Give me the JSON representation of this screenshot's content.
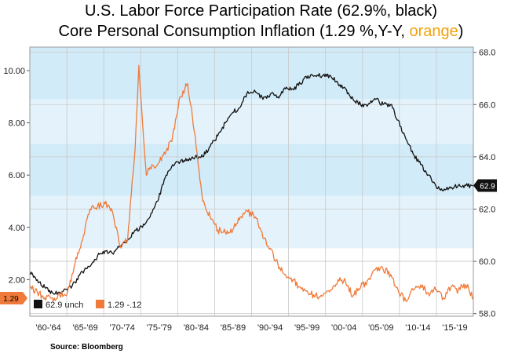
{
  "header": {
    "title_line1": "U.S. Labor Force Participation Rate (62.9%, black)",
    "title_line2_prefix": "Core Personal Consumption Inflation (1.29 %,Y-Y, ",
    "title_line2_highlight": "orange",
    "title_line2_suffix": ")"
  },
  "source": "Source:  Bloomberg",
  "colors": {
    "orange": "#f07a3a",
    "black": "#111111",
    "band_light": "#e4f3fb",
    "band_mid": "#d2ebf8",
    "highlight_text": "#f2a20a"
  },
  "chart_data": {
    "type": "line",
    "x_ticks": [
      "'60-'64",
      "'65-'69",
      "'70-'74",
      "'75-'79",
      "'80-'84",
      "'85-'89",
      "'90-'94",
      "'95-'99",
      "'00-'04",
      "'05-'09",
      "'10-'14",
      "'15-'19"
    ],
    "x_range": [
      1960,
      2019
    ],
    "y_left": {
      "ticks": [
        "2.00",
        "4.00",
        "6.00",
        "8.00",
        "10.00"
      ],
      "range": [
        0.6,
        10.9
      ]
    },
    "y_right": {
      "ticks": [
        "58.0",
        "60.0",
        "62.0",
        "64.0",
        "66.0",
        "68.0"
      ],
      "range": [
        57.9,
        68.2
      ]
    },
    "grid": true,
    "legend_position": "bottom-left",
    "series": [
      {
        "name": "62.9  unch",
        "axis": "right",
        "color": "#111111",
        "x": [
          1960,
          1962,
          1963,
          1964,
          1965,
          1966,
          1967,
          1968,
          1969,
          1970,
          1971,
          1972,
          1973,
          1974,
          1975,
          1976,
          1977,
          1978,
          1979,
          1980,
          1981,
          1982,
          1983,
          1984,
          1985,
          1986,
          1987,
          1988,
          1989,
          1990,
          1991,
          1992,
          1993,
          1994,
          1995,
          1996,
          1997,
          1998,
          1999,
          2000,
          2001,
          2002,
          2003,
          2004,
          2005,
          2006,
          2007,
          2008,
          2009,
          2010,
          2011,
          2012,
          2013,
          2014,
          2015,
          2016,
          2017,
          2018,
          2019
        ],
        "values": [
          59.6,
          59.0,
          58.8,
          58.8,
          58.9,
          59.2,
          59.6,
          59.8,
          60.2,
          60.4,
          60.3,
          60.6,
          60.8,
          61.2,
          61.3,
          61.7,
          62.3,
          63.2,
          63.7,
          63.8,
          63.9,
          64.0,
          64.0,
          64.4,
          64.8,
          65.3,
          65.7,
          65.9,
          66.5,
          66.5,
          66.2,
          66.4,
          66.3,
          66.6,
          66.6,
          66.8,
          67.1,
          67.1,
          67.1,
          67.1,
          66.8,
          66.6,
          66.2,
          66.0,
          66.0,
          66.2,
          66.0,
          66.0,
          65.4,
          64.7,
          64.1,
          63.7,
          63.3,
          62.9,
          62.7,
          62.8,
          62.9,
          62.9,
          62.9
        ]
      },
      {
        "name": "1.29  -.12",
        "axis": "left",
        "color": "#f07a3a",
        "x": [
          1960,
          1962,
          1963,
          1964,
          1965,
          1966,
          1967,
          1968,
          1969,
          1970,
          1971,
          1972,
          1973,
          1974,
          1974.5,
          1975,
          1975.5,
          1976,
          1977,
          1978,
          1979,
          1980,
          1981,
          1982,
          1983,
          1984,
          1985,
          1986,
          1987,
          1988,
          1989,
          1990,
          1991,
          1992,
          1993,
          1994,
          1995,
          1996,
          1997,
          1998,
          1999,
          2000,
          2001,
          2002,
          2003,
          2004,
          2005,
          2006,
          2007,
          2008,
          2009,
          2010,
          2011,
          2012,
          2013,
          2014,
          2015,
          2016,
          2017,
          2018,
          2019
        ],
        "values": [
          1.7,
          1.3,
          1.3,
          1.4,
          1.5,
          2.6,
          3.5,
          4.7,
          4.8,
          4.9,
          4.6,
          3.3,
          3.5,
          7.0,
          10.2,
          8.0,
          6.0,
          6.3,
          6.4,
          6.8,
          7.5,
          9.0,
          9.5,
          7.5,
          5.0,
          4.4,
          3.9,
          3.8,
          3.9,
          4.4,
          4.6,
          4.4,
          3.6,
          3.2,
          2.6,
          2.2,
          2.0,
          1.7,
          1.5,
          1.4,
          1.4,
          1.6,
          2.0,
          1.9,
          1.4,
          1.7,
          2.0,
          2.4,
          2.4,
          2.2,
          1.6,
          1.2,
          1.6,
          1.8,
          1.5,
          1.6,
          1.3,
          1.7,
          1.6,
          1.8,
          1.29
        ]
      }
    ],
    "last_value_labels": {
      "left": "1.29",
      "right": "62.9"
    }
  }
}
